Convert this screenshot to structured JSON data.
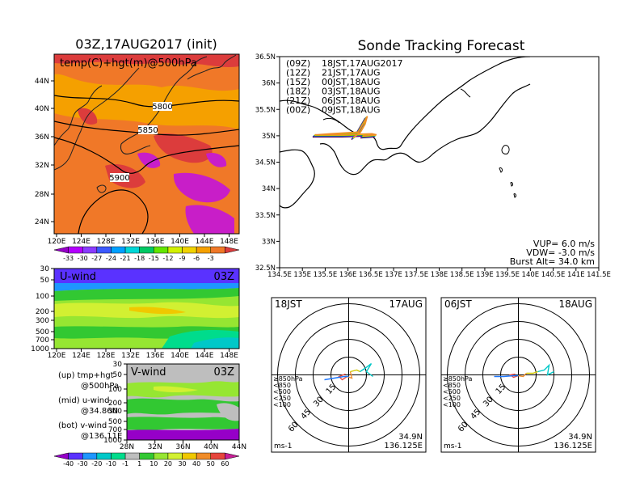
{
  "left_title": "03Z,17AUG2017 (init)",
  "right_title": "Sonde Tracking Forecast",
  "upper_map": {
    "label": "temp(C)+hgt(m)@500hPa",
    "lat_ticks": [
      "44N",
      "40N",
      "36N",
      "32N",
      "28N",
      "24N"
    ],
    "lon_ticks": [
      "120E",
      "124E",
      "128E",
      "132E",
      "136E",
      "140E",
      "144E",
      "148E"
    ],
    "contours": [
      "5800",
      "5850",
      "5900"
    ],
    "colorbar_ticks": [
      "-33",
      "-30",
      "-27",
      "-24",
      "-21",
      "-18",
      "-15",
      "-12",
      "-9",
      "-6",
      "-3"
    ],
    "colors": [
      "#9600c8",
      "#b400ff",
      "#8a3cff",
      "#3c5aff",
      "#00a0ff",
      "#00d7d7",
      "#00c864",
      "#64e600",
      "#d2f000",
      "#f0d200",
      "#f5a000",
      "#f07828",
      "#dc3c3c"
    ]
  },
  "uwind": {
    "label": "U-wind",
    "time": "03Z",
    "p_ticks": [
      "30",
      "50",
      "100",
      "200",
      "300",
      "500",
      "700",
      "1000"
    ],
    "lon_ticks": [
      "120E",
      "124E",
      "128E",
      "132E",
      "136E",
      "140E",
      "144E",
      "148E"
    ]
  },
  "vwind": {
    "label": "V-wind",
    "time": "03Z",
    "p_ticks": [
      "30",
      "50",
      "100",
      "200",
      "300",
      "500",
      "700",
      "1000"
    ],
    "lat_ticks": [
      "28N",
      "32N",
      "36N",
      "40N",
      "44N"
    ]
  },
  "legend_notes": [
    {
      "a": "(up) tmp+hgt",
      "b": "@500hPa"
    },
    {
      "a": "(mid) u-wind",
      "b": "@34.86N"
    },
    {
      "a": "(bot) v-wind",
      "b": "@136.11E"
    }
  ],
  "wind_colorbar_ticks": [
    "-40",
    "-30",
    "-20",
    "-10",
    "-1",
    "1",
    "10",
    "20",
    "30",
    "40",
    "50",
    "60"
  ],
  "wind_colorbar_colors": [
    "#9600c8",
    "#5a32ff",
    "#1e96ff",
    "#00c8c8",
    "#00dc8c",
    "#bebebe",
    "#32c832",
    "#96e632",
    "#d2f032",
    "#f0c800",
    "#f08c28",
    "#e6463c",
    "#c81e96"
  ],
  "track_map": {
    "lat_ticks": [
      "36.5N",
      "36N",
      "35.5N",
      "35N",
      "34.5N",
      "34N",
      "33.5N",
      "33N",
      "32.5N"
    ],
    "lon_ticks": [
      "134.5E",
      "135E",
      "135.5E",
      "136E",
      "136.5E",
      "137E",
      "137.5E",
      "138E",
      "138.5E",
      "139E",
      "139.5E",
      "140E",
      "140.5E",
      "141E",
      "141.5E"
    ],
    "legend": [
      {
        "code": "(09Z)",
        "time": "18JST,17AUG2017",
        "color": "#000000"
      },
      {
        "code": "(12Z)",
        "time": "21JST,17AUG",
        "color": "#a000c8"
      },
      {
        "code": "(15Z)",
        "time": "00JST,18AUG",
        "color": "#1e3cff"
      },
      {
        "code": "(18Z)",
        "time": "03JST,18AUG",
        "color": "#00c800"
      },
      {
        "code": "(21Z)",
        "time": "06JST,18AUG",
        "color": "#f0d200"
      },
      {
        "code": "(00Z)",
        "time": "09JST,18AUG",
        "color": "#f08c28"
      }
    ],
    "params": [
      "VUP= 6.0 m/s",
      "VDW= -3.0 m/s",
      "Burst Alt= 34.0 km"
    ]
  },
  "hodo1": {
    "time": "18JST",
    "date": "17AUG",
    "rings": [
      "15",
      "30",
      "45",
      "60"
    ],
    "levels": [
      {
        "label": "≥850hPa",
        "color": "#e6463c"
      },
      {
        "label": "<850",
        "color": "#f08c28"
      },
      {
        "label": "<500",
        "color": "#d2c800"
      },
      {
        "label": "<250",
        "color": "#00c8c8"
      },
      {
        "label": "<100",
        "color": "#1e78ff"
      }
    ],
    "unit": "ms-1",
    "lat": "34.9N",
    "lon": "136.125E"
  },
  "hodo2": {
    "time": "06JST",
    "date": "18AUG",
    "rings": [
      "15",
      "30",
      "45",
      "60"
    ],
    "levels": [
      {
        "label": "≥850hPa",
        "color": "#e6463c"
      },
      {
        "label": "<850",
        "color": "#f08c28"
      },
      {
        "label": "<500",
        "color": "#d2c800"
      },
      {
        "label": "<250",
        "color": "#00c8c8"
      },
      {
        "label": "<100",
        "color": "#1e78ff"
      }
    ],
    "unit": "ms-1",
    "lat": "34.9N",
    "lon": "136.125E"
  }
}
